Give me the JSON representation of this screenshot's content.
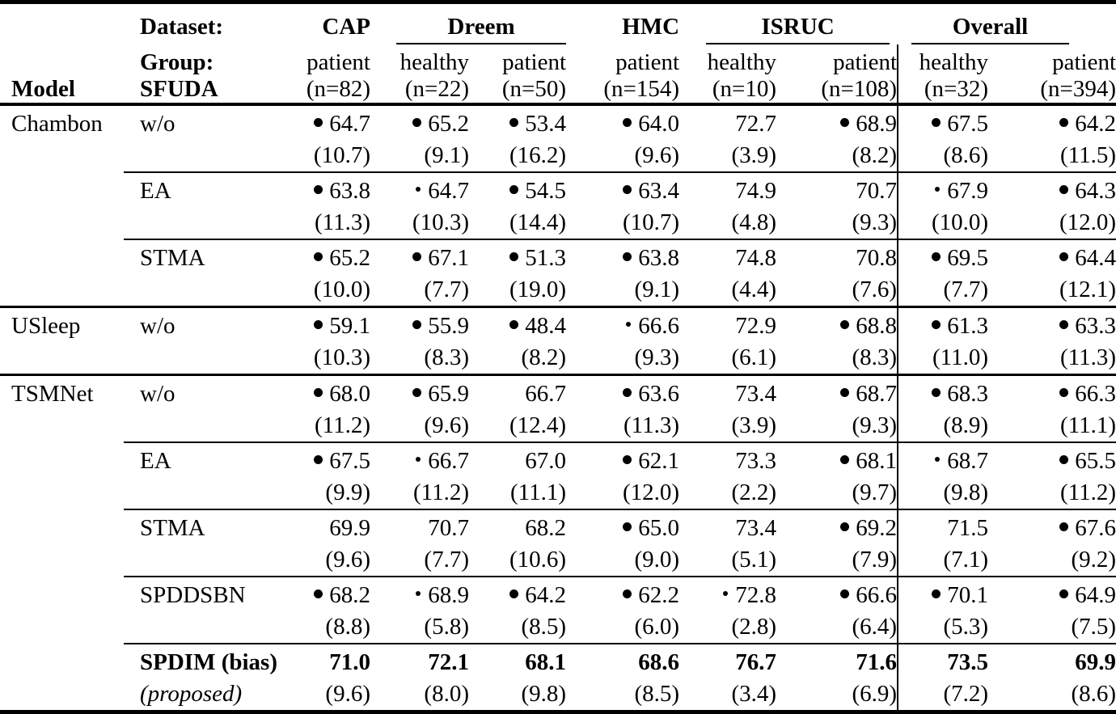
{
  "header": {
    "model_label": "Model",
    "dataset_label": "Dataset:",
    "group_label": "Group:",
    "sfuda_label": "SFUDA",
    "datasets": [
      {
        "name": "CAP",
        "cols": 1,
        "underline": false
      },
      {
        "name": "Dreem",
        "cols": 2,
        "underline": true
      },
      {
        "name": "HMC",
        "cols": 1,
        "underline": false
      },
      {
        "name": "ISRUC",
        "cols": 2,
        "underline": true
      },
      {
        "name": "Overall",
        "cols": 2,
        "underline": true
      }
    ],
    "subcolumns": [
      {
        "group": "patient",
        "n": "(n=82)"
      },
      {
        "group": "healthy",
        "n": "(n=22)"
      },
      {
        "group": "patient",
        "n": "(n=50)"
      },
      {
        "group": "patient",
        "n": "(n=154)"
      },
      {
        "group": "healthy",
        "n": "(n=10)"
      },
      {
        "group": "patient",
        "n": "(n=108)"
      },
      {
        "group": "healthy",
        "n": "(n=32)"
      },
      {
        "group": "patient",
        "n": "(n=394)"
      }
    ]
  },
  "marker_legend": {
    "large": "filled-circle-marker",
    "small": "small-dot-marker",
    "none": "no-marker"
  },
  "blocks": [
    {
      "model": "Chambon",
      "rows": [
        {
          "sfuda": "w/o",
          "bold": false,
          "cells": [
            {
              "marker": "large",
              "value": "64.7",
              "sd": "(10.7)"
            },
            {
              "marker": "large",
              "value": "65.2",
              "sd": "(9.1)"
            },
            {
              "marker": "large",
              "value": "53.4",
              "sd": "(16.2)"
            },
            {
              "marker": "large",
              "value": "64.0",
              "sd": "(9.6)"
            },
            {
              "marker": "none",
              "value": "72.7",
              "sd": "(3.9)"
            },
            {
              "marker": "large",
              "value": "68.9",
              "sd": "(8.2)"
            },
            {
              "marker": "large",
              "value": "67.5",
              "sd": "(8.6)"
            },
            {
              "marker": "large",
              "value": "64.2",
              "sd": "(11.5)"
            }
          ]
        },
        {
          "sfuda": "EA",
          "bold": false,
          "cells": [
            {
              "marker": "large",
              "value": "63.8",
              "sd": "(11.3)"
            },
            {
              "marker": "small",
              "value": "64.7",
              "sd": "(10.3)"
            },
            {
              "marker": "large",
              "value": "54.5",
              "sd": "(14.4)"
            },
            {
              "marker": "large",
              "value": "63.4",
              "sd": "(10.7)"
            },
            {
              "marker": "none",
              "value": "74.9",
              "sd": "(4.8)"
            },
            {
              "marker": "none",
              "value": "70.7",
              "sd": "(9.3)"
            },
            {
              "marker": "small",
              "value": "67.9",
              "sd": "(10.0)"
            },
            {
              "marker": "large",
              "value": "64.3",
              "sd": "(12.0)"
            }
          ]
        },
        {
          "sfuda": "STMA",
          "bold": false,
          "cells": [
            {
              "marker": "large",
              "value": "65.2",
              "sd": "(10.0)"
            },
            {
              "marker": "large",
              "value": "67.1",
              "sd": "(7.7)"
            },
            {
              "marker": "large",
              "value": "51.3",
              "sd": "(19.0)"
            },
            {
              "marker": "large",
              "value": "63.8",
              "sd": "(9.1)"
            },
            {
              "marker": "none",
              "value": "74.8",
              "sd": "(4.4)"
            },
            {
              "marker": "none",
              "value": "70.8",
              "sd": "(7.6)"
            },
            {
              "marker": "large",
              "value": "69.5",
              "sd": "(7.7)"
            },
            {
              "marker": "large",
              "value": "64.4",
              "sd": "(12.1)"
            }
          ]
        }
      ]
    },
    {
      "model": "USleep",
      "rows": [
        {
          "sfuda": "w/o",
          "bold": false,
          "cells": [
            {
              "marker": "large",
              "value": "59.1",
              "sd": "(10.3)"
            },
            {
              "marker": "large",
              "value": "55.9",
              "sd": "(8.3)"
            },
            {
              "marker": "large",
              "value": "48.4",
              "sd": "(8.2)"
            },
            {
              "marker": "small",
              "value": "66.6",
              "sd": "(9.3)"
            },
            {
              "marker": "none",
              "value": "72.9",
              "sd": "(6.1)"
            },
            {
              "marker": "large",
              "value": "68.8",
              "sd": "(8.3)"
            },
            {
              "marker": "large",
              "value": "61.3",
              "sd": "(11.0)"
            },
            {
              "marker": "large",
              "value": "63.3",
              "sd": "(11.3)"
            }
          ]
        }
      ]
    },
    {
      "model": "TSMNet",
      "rows": [
        {
          "sfuda": "w/o",
          "bold": false,
          "cells": [
            {
              "marker": "large",
              "value": "68.0",
              "sd": "(11.2)"
            },
            {
              "marker": "large",
              "value": "65.9",
              "sd": "(9.6)"
            },
            {
              "marker": "none",
              "value": "66.7",
              "sd": "(12.4)"
            },
            {
              "marker": "large",
              "value": "63.6",
              "sd": "(11.3)"
            },
            {
              "marker": "none",
              "value": "73.4",
              "sd": "(3.9)"
            },
            {
              "marker": "large",
              "value": "68.7",
              "sd": "(9.3)"
            },
            {
              "marker": "large",
              "value": "68.3",
              "sd": "(8.9)"
            },
            {
              "marker": "large",
              "value": "66.3",
              "sd": "(11.1)"
            }
          ]
        },
        {
          "sfuda": "EA",
          "bold": false,
          "cells": [
            {
              "marker": "large",
              "value": "67.5",
              "sd": "(9.9)"
            },
            {
              "marker": "small",
              "value": "66.7",
              "sd": "(11.2)"
            },
            {
              "marker": "none",
              "value": "67.0",
              "sd": "(11.1)"
            },
            {
              "marker": "large",
              "value": "62.1",
              "sd": "(12.0)"
            },
            {
              "marker": "none",
              "value": "73.3",
              "sd": "(2.2)"
            },
            {
              "marker": "large",
              "value": "68.1",
              "sd": "(9.7)"
            },
            {
              "marker": "small",
              "value": "68.7",
              "sd": "(9.8)"
            },
            {
              "marker": "large",
              "value": "65.5",
              "sd": "(11.2)"
            }
          ]
        },
        {
          "sfuda": "STMA",
          "bold": false,
          "cells": [
            {
              "marker": "none",
              "value": "69.9",
              "sd": "(9.6)"
            },
            {
              "marker": "none",
              "value": "70.7",
              "sd": "(7.7)"
            },
            {
              "marker": "none",
              "value": "68.2",
              "sd": "(10.6)"
            },
            {
              "marker": "large",
              "value": "65.0",
              "sd": "(9.0)"
            },
            {
              "marker": "none",
              "value": "73.4",
              "sd": "(5.1)"
            },
            {
              "marker": "large",
              "value": "69.2",
              "sd": "(7.9)"
            },
            {
              "marker": "none",
              "value": "71.5",
              "sd": "(7.1)"
            },
            {
              "marker": "large",
              "value": "67.6",
              "sd": "(9.2)"
            }
          ]
        },
        {
          "sfuda": "SPDDSBN",
          "bold": false,
          "cells": [
            {
              "marker": "large",
              "value": "68.2",
              "sd": "(8.8)"
            },
            {
              "marker": "small",
              "value": "68.9",
              "sd": "(5.8)"
            },
            {
              "marker": "large",
              "value": "64.2",
              "sd": "(8.5)"
            },
            {
              "marker": "large",
              "value": "62.2",
              "sd": "(6.0)"
            },
            {
              "marker": "small",
              "value": "72.8",
              "sd": "(2.8)"
            },
            {
              "marker": "large",
              "value": "66.6",
              "sd": "(6.4)"
            },
            {
              "marker": "large",
              "value": "70.1",
              "sd": "(5.3)"
            },
            {
              "marker": "large",
              "value": "64.9",
              "sd": "(7.5)"
            }
          ]
        },
        {
          "sfuda": "SPDIM (bias)",
          "sfuda_line2": "(proposed)",
          "bold": true,
          "cells": [
            {
              "marker": "none",
              "value": "71.0",
              "sd": "(9.6)"
            },
            {
              "marker": "none",
              "value": "72.1",
              "sd": "(8.0)"
            },
            {
              "marker": "none",
              "value": "68.1",
              "sd": "(9.8)"
            },
            {
              "marker": "none",
              "value": "68.6",
              "sd": "(8.5)"
            },
            {
              "marker": "none",
              "value": "76.7",
              "sd": "(3.4)"
            },
            {
              "marker": "none",
              "value": "71.6",
              "sd": "(6.9)"
            },
            {
              "marker": "none",
              "value": "73.5",
              "sd": "(7.2)"
            },
            {
              "marker": "none",
              "value": "69.9",
              "sd": "(8.6)"
            }
          ]
        }
      ]
    }
  ]
}
